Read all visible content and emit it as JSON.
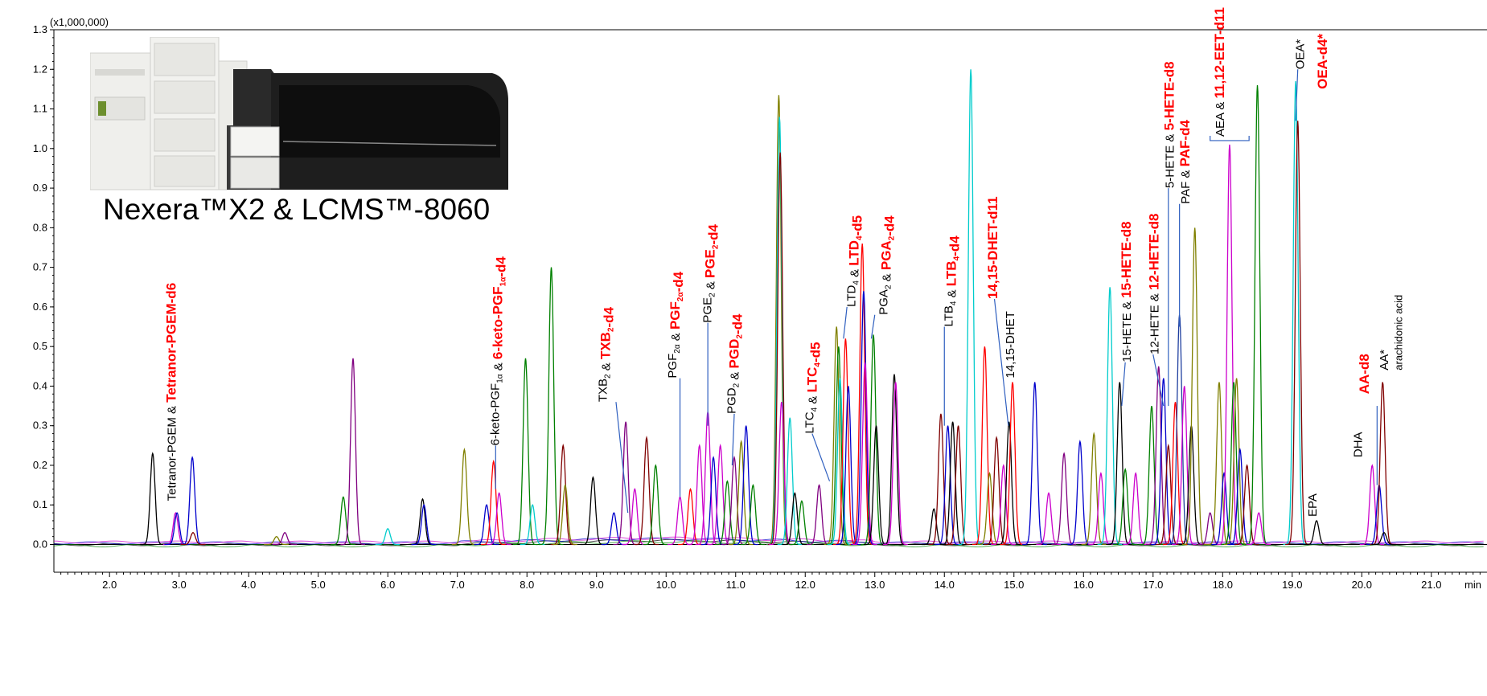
{
  "chart_data": {
    "type": "line",
    "title": "",
    "xlabel": "min",
    "ylabel": "",
    "y_multiplier": "(x1,000,000)",
    "xlim": [
      1.2,
      21.8
    ],
    "ylim": [
      -0.07,
      1.3
    ],
    "x_ticks": [
      "2.0",
      "3.0",
      "4.0",
      "5.0",
      "6.0",
      "7.0",
      "8.0",
      "9.0",
      "10.0",
      "11.0",
      "12.0",
      "13.0",
      "14.0",
      "15.0",
      "16.0",
      "17.0",
      "18.0",
      "19.0",
      "20.0",
      "21.0"
    ],
    "y_ticks": [
      "0.0",
      "0.1",
      "0.2",
      "0.3",
      "0.4",
      "0.5",
      "0.6",
      "0.7",
      "0.8",
      "0.9",
      "1.0",
      "1.1",
      "1.2",
      "1.3"
    ],
    "grid": false,
    "legend": "none",
    "inset_caption": "Nexera™X2 & LCMS™-8060",
    "colors": [
      "#000000",
      "#ff0000",
      "#0000cc",
      "#00cccc",
      "#cc00cc",
      "#808000",
      "#008000",
      "#800000",
      "#800080",
      "#1f3f9f"
    ],
    "peaks": [
      {
        "x": 2.62,
        "y": 0.23,
        "c": 0
      },
      {
        "x": 2.95,
        "y": 0.08,
        "c": 4
      },
      {
        "x": 2.97,
        "y": 0.08,
        "c": 2
      },
      {
        "x": 3.19,
        "y": 0.22,
        "c": 2
      },
      {
        "x": 3.2,
        "y": 0.03,
        "c": 7
      },
      {
        "x": 4.4,
        "y": 0.02,
        "c": 5
      },
      {
        "x": 4.52,
        "y": 0.03,
        "c": 8
      },
      {
        "x": 5.36,
        "y": 0.12,
        "c": 6
      },
      {
        "x": 5.5,
        "y": 0.47,
        "c": 8
      },
      {
        "x": 6.0,
        "y": 0.04,
        "c": 3
      },
      {
        "x": 6.5,
        "y": 0.115,
        "c": 0
      },
      {
        "x": 6.52,
        "y": 0.1,
        "c": 2
      },
      {
        "x": 7.1,
        "y": 0.24,
        "c": 5
      },
      {
        "x": 7.42,
        "y": 0.1,
        "c": 2
      },
      {
        "x": 7.52,
        "y": 0.21,
        "c": 1
      },
      {
        "x": 7.6,
        "y": 0.13,
        "c": 4
      },
      {
        "x": 7.98,
        "y": 0.47,
        "c": 6
      },
      {
        "x": 8.08,
        "y": 0.1,
        "c": 3
      },
      {
        "x": 8.35,
        "y": 0.7,
        "c": 6
      },
      {
        "x": 8.52,
        "y": 0.25,
        "c": 7
      },
      {
        "x": 8.55,
        "y": 0.15,
        "c": 5
      },
      {
        "x": 8.95,
        "y": 0.17,
        "c": 0
      },
      {
        "x": 9.25,
        "y": 0.08,
        "c": 2
      },
      {
        "x": 9.42,
        "y": 0.31,
        "c": 8
      },
      {
        "x": 9.55,
        "y": 0.14,
        "c": 4
      },
      {
        "x": 9.72,
        "y": 0.27,
        "c": 7
      },
      {
        "x": 9.85,
        "y": 0.2,
        "c": 6
      },
      {
        "x": 10.2,
        "y": 0.12,
        "c": 4
      },
      {
        "x": 10.35,
        "y": 0.14,
        "c": 1
      },
      {
        "x": 10.48,
        "y": 0.25,
        "c": 4
      },
      {
        "x": 10.6,
        "y": 0.335,
        "c": 4
      },
      {
        "x": 10.68,
        "y": 0.22,
        "c": 2
      },
      {
        "x": 10.78,
        "y": 0.25,
        "c": 4
      },
      {
        "x": 10.88,
        "y": 0.16,
        "c": 6
      },
      {
        "x": 10.98,
        "y": 0.22,
        "c": 8
      },
      {
        "x": 11.08,
        "y": 0.26,
        "c": 5
      },
      {
        "x": 11.15,
        "y": 0.3,
        "c": 2
      },
      {
        "x": 11.25,
        "y": 0.15,
        "c": 6
      },
      {
        "x": 11.62,
        "y": 1.135,
        "c": 5
      },
      {
        "x": 11.63,
        "y": 1.08,
        "c": 3
      },
      {
        "x": 11.64,
        "y": 0.99,
        "c": 7
      },
      {
        "x": 11.66,
        "y": 0.36,
        "c": 4
      },
      {
        "x": 11.78,
        "y": 0.32,
        "c": 3
      },
      {
        "x": 11.85,
        "y": 0.13,
        "c": 0
      },
      {
        "x": 11.95,
        "y": 0.11,
        "c": 6
      },
      {
        "x": 12.2,
        "y": 0.15,
        "c": 8
      },
      {
        "x": 12.45,
        "y": 0.55,
        "c": 5
      },
      {
        "x": 12.48,
        "y": 0.5,
        "c": 6
      },
      {
        "x": 12.5,
        "y": 0.42,
        "c": 3
      },
      {
        "x": 12.58,
        "y": 0.52,
        "c": 1
      },
      {
        "x": 12.62,
        "y": 0.4,
        "c": 2
      },
      {
        "x": 12.82,
        "y": 0.76,
        "c": 1
      },
      {
        "x": 12.84,
        "y": 0.64,
        "c": 2
      },
      {
        "x": 12.86,
        "y": 0.46,
        "c": 4
      },
      {
        "x": 12.98,
        "y": 0.53,
        "c": 6
      },
      {
        "x": 13.02,
        "y": 0.3,
        "c": 0
      },
      {
        "x": 13.28,
        "y": 0.43,
        "c": 0
      },
      {
        "x": 13.3,
        "y": 0.41,
        "c": 4
      },
      {
        "x": 13.85,
        "y": 0.09,
        "c": 0
      },
      {
        "x": 13.95,
        "y": 0.33,
        "c": 7
      },
      {
        "x": 14.05,
        "y": 0.3,
        "c": 2
      },
      {
        "x": 14.12,
        "y": 0.31,
        "c": 0
      },
      {
        "x": 14.2,
        "y": 0.3,
        "c": 7
      },
      {
        "x": 14.38,
        "y": 1.2,
        "c": 3
      },
      {
        "x": 14.58,
        "y": 0.5,
        "c": 1
      },
      {
        "x": 14.65,
        "y": 0.18,
        "c": 5
      },
      {
        "x": 14.75,
        "y": 0.27,
        "c": 7
      },
      {
        "x": 14.85,
        "y": 0.2,
        "c": 4
      },
      {
        "x": 14.93,
        "y": 0.31,
        "c": 0
      },
      {
        "x": 14.98,
        "y": 0.41,
        "c": 1
      },
      {
        "x": 15.3,
        "y": 0.41,
        "c": 2
      },
      {
        "x": 15.5,
        "y": 0.13,
        "c": 4
      },
      {
        "x": 15.72,
        "y": 0.23,
        "c": 8
      },
      {
        "x": 15.95,
        "y": 0.26,
        "c": 2
      },
      {
        "x": 16.15,
        "y": 0.28,
        "c": 5
      },
      {
        "x": 16.25,
        "y": 0.18,
        "c": 4
      },
      {
        "x": 16.38,
        "y": 0.65,
        "c": 3
      },
      {
        "x": 16.52,
        "y": 0.41,
        "c": 0
      },
      {
        "x": 16.6,
        "y": 0.19,
        "c": 6
      },
      {
        "x": 16.75,
        "y": 0.18,
        "c": 4
      },
      {
        "x": 16.98,
        "y": 0.35,
        "c": 6
      },
      {
        "x": 17.08,
        "y": 0.45,
        "c": 8
      },
      {
        "x": 17.15,
        "y": 0.42,
        "c": 2
      },
      {
        "x": 17.22,
        "y": 0.25,
        "c": 7
      },
      {
        "x": 17.32,
        "y": 0.36,
        "c": 1
      },
      {
        "x": 17.38,
        "y": 0.58,
        "c": 9
      },
      {
        "x": 17.45,
        "y": 0.4,
        "c": 4
      },
      {
        "x": 17.55,
        "y": 0.3,
        "c": 0
      },
      {
        "x": 17.6,
        "y": 0.8,
        "c": 5
      },
      {
        "x": 17.82,
        "y": 0.08,
        "c": 8
      },
      {
        "x": 17.95,
        "y": 0.41,
        "c": 5
      },
      {
        "x": 18.02,
        "y": 0.18,
        "c": 2
      },
      {
        "x": 18.1,
        "y": 1.01,
        "c": 4
      },
      {
        "x": 18.16,
        "y": 0.41,
        "c": 6
      },
      {
        "x": 18.2,
        "y": 0.42,
        "c": 5
      },
      {
        "x": 18.25,
        "y": 0.24,
        "c": 2
      },
      {
        "x": 18.35,
        "y": 0.2,
        "c": 7
      },
      {
        "x": 18.5,
        "y": 1.16,
        "c": 6
      },
      {
        "x": 18.52,
        "y": 0.08,
        "c": 4
      },
      {
        "x": 19.05,
        "y": 1.17,
        "c": 3
      },
      {
        "x": 19.08,
        "y": 1.07,
        "c": 7
      },
      {
        "x": 19.35,
        "y": 0.06,
        "c": 0
      },
      {
        "x": 20.15,
        "y": 0.2,
        "c": 4
      },
      {
        "x": 20.25,
        "y": 0.15,
        "c": 2
      },
      {
        "x": 20.3,
        "y": 0.41,
        "c": 7
      },
      {
        "x": 20.32,
        "y": 0.03,
        "c": 0
      }
    ],
    "annotations": [
      {
        "x": 2.95,
        "y": 0.11,
        "parts": [
          [
            "Tetranor-PGEM & ",
            "black"
          ],
          [
            "Tetranor-PGEM-d6",
            "red"
          ]
        ]
      },
      {
        "x": 7.6,
        "y": 0.25,
        "parts": [
          [
            "6-keto-PGF",
            "black"
          ],
          [
            "1α",
            "black-sub"
          ],
          [
            " & ",
            "black"
          ],
          [
            "6-keto-PGF",
            "red"
          ],
          [
            "1α",
            "red-sub"
          ],
          [
            "-d4",
            "red"
          ]
        ]
      },
      {
        "x": 9.15,
        "y": 0.36,
        "parts": [
          [
            "TXB",
            "black"
          ],
          [
            "2",
            "black-sub"
          ],
          [
            " & ",
            "black"
          ],
          [
            "TXB",
            "red"
          ],
          [
            "2",
            "red-sub"
          ],
          [
            "-d4",
            "red"
          ]
        ]
      },
      {
        "x": 10.15,
        "y": 0.42,
        "parts": [
          [
            "PGF",
            "black"
          ],
          [
            "2α",
            "black-sub"
          ],
          [
            " & ",
            "black"
          ],
          [
            "PGF",
            "red"
          ],
          [
            "2α",
            "red-sub"
          ],
          [
            "-d4",
            "red"
          ]
        ]
      },
      {
        "x": 10.65,
        "y": 0.56,
        "parts": [
          [
            "PGE",
            "black"
          ],
          [
            "2",
            "black-sub"
          ],
          [
            " & ",
            "black"
          ],
          [
            "PGE",
            "red"
          ],
          [
            "2",
            "red-sub"
          ],
          [
            "-d4",
            "red"
          ]
        ]
      },
      {
        "x": 11.0,
        "y": 0.33,
        "parts": [
          [
            "PGD",
            "black"
          ],
          [
            "2",
            "black-sub"
          ],
          [
            " & ",
            "black"
          ],
          [
            "PGD",
            "red"
          ],
          [
            "2",
            "red-sub"
          ],
          [
            "-d4",
            "red"
          ]
        ]
      },
      {
        "x": 12.12,
        "y": 0.28,
        "parts": [
          [
            "LTC",
            "black"
          ],
          [
            "4",
            "black-sub"
          ],
          [
            " & ",
            "black"
          ],
          [
            "LTC",
            "red"
          ],
          [
            "4",
            "red-sub"
          ],
          [
            "-d5",
            "red"
          ]
        ]
      },
      {
        "x": 12.72,
        "y": 0.6,
        "parts": [
          [
            "LTD",
            "black"
          ],
          [
            "4",
            "black-sub"
          ],
          [
            " & ",
            "black"
          ],
          [
            "LTD",
            "red"
          ],
          [
            "4",
            "red-sub"
          ],
          [
            "-d5",
            "red"
          ]
        ]
      },
      {
        "x": 13.18,
        "y": 0.58,
        "parts": [
          [
            "PGA",
            "black"
          ],
          [
            "2",
            "black-sub"
          ],
          [
            " & ",
            "black"
          ],
          [
            "PGA",
            "red"
          ],
          [
            "2",
            "red-sub"
          ],
          [
            "-d4",
            "red"
          ]
        ]
      },
      {
        "x": 14.12,
        "y": 0.55,
        "parts": [
          [
            "LTB",
            "black"
          ],
          [
            "4",
            "black-sub"
          ],
          [
            " & ",
            "black"
          ],
          [
            "LTB",
            "red"
          ],
          [
            "4",
            "red-sub"
          ],
          [
            "-d4",
            "red"
          ]
        ]
      },
      {
        "x": 14.76,
        "y": 0.62,
        "parts": [
          [
            "14,15-DHET-d11",
            "red"
          ]
        ]
      },
      {
        "x": 15.0,
        "y": 0.42,
        "parts": [
          [
            "14,15-DHET",
            "black"
          ]
        ]
      },
      {
        "x": 16.68,
        "y": 0.46,
        "parts": [
          [
            "15-HETE & ",
            "black"
          ],
          [
            "15-HETE-d8",
            "red"
          ]
        ]
      },
      {
        "x": 17.08,
        "y": 0.48,
        "parts": [
          [
            "12-HETE & ",
            "black"
          ],
          [
            "12-HETE-d8",
            "red"
          ]
        ]
      },
      {
        "x": 17.3,
        "y": 0.9,
        "parts": [
          [
            "5-HETE & ",
            "black"
          ],
          [
            "5-HETE-d8",
            "red"
          ]
        ]
      },
      {
        "x": 17.52,
        "y": 0.86,
        "parts": [
          [
            "PAF & ",
            "black"
          ],
          [
            "PAF-d4",
            "red"
          ]
        ]
      },
      {
        "x": 18.02,
        "y": 1.03,
        "parts": [
          [
            "AEA & ",
            "black"
          ],
          [
            "11,12-EET-d11",
            "red"
          ]
        ]
      },
      {
        "x": 19.17,
        "y": 1.2,
        "parts": [
          [
            "OEA*",
            "black"
          ]
        ]
      },
      {
        "x": 19.5,
        "y": 1.15,
        "parts": [
          [
            "OEA-d4*",
            "red"
          ]
        ]
      },
      {
        "x": 19.35,
        "y": 0.07,
        "parts": [
          [
            "EPA",
            "black"
          ]
        ]
      },
      {
        "x": 20.0,
        "y": 0.22,
        "parts": [
          [
            "DHA",
            "black"
          ]
        ]
      },
      {
        "x": 20.1,
        "y": 0.38,
        "parts": [
          [
            "AA-d8",
            "red"
          ]
        ]
      },
      {
        "x": 20.38,
        "y": 0.44,
        "parts": [
          [
            "AA*",
            "black"
          ]
        ]
      },
      {
        "x": 20.58,
        "y": 0.44,
        "parts": [
          [
            "arachidonic acid",
            "small"
          ]
        ]
      }
    ],
    "leaders": [
      [
        7.55,
        0.25,
        7.55,
        0.14
      ],
      [
        9.28,
        0.36,
        9.45,
        0.08
      ],
      [
        10.2,
        0.42,
        10.2,
        0.12
      ],
      [
        10.6,
        0.56,
        10.6,
        0.3
      ],
      [
        10.98,
        0.33,
        10.95,
        0.2
      ],
      [
        12.1,
        0.28,
        12.35,
        0.16
      ],
      [
        12.6,
        0.6,
        12.55,
        0.52
      ],
      [
        13.0,
        0.58,
        12.95,
        0.52
      ],
      [
        14.0,
        0.55,
        14.0,
        0.3
      ],
      [
        14.72,
        0.62,
        14.92,
        0.3
      ],
      [
        16.6,
        0.46,
        16.55,
        0.35
      ],
      [
        17.0,
        0.48,
        17.15,
        0.35
      ],
      [
        17.22,
        0.9,
        17.22,
        0.35
      ],
      [
        17.38,
        0.86,
        17.38,
        0.55
      ],
      [
        20.22,
        0.35,
        20.22,
        0.15
      ],
      [
        19.08,
        1.2,
        19.05,
        1.07
      ]
    ],
    "bracket": [
      17.82,
      18.38,
      1.02
    ]
  }
}
